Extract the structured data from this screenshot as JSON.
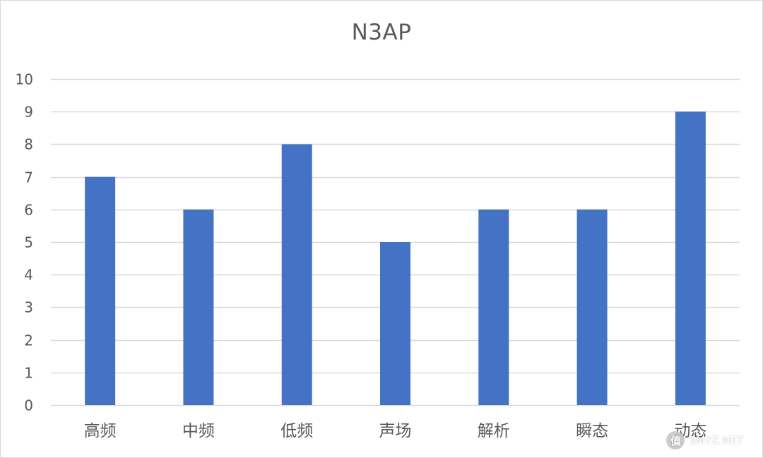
{
  "chart_data": {
    "type": "bar",
    "title": "N3AP",
    "categories": [
      "高频",
      "中频",
      "低频",
      "声场",
      "解析",
      "瞬态",
      "动态"
    ],
    "values": [
      7,
      6,
      8,
      5,
      6,
      6,
      9
    ],
    "xlabel": "",
    "ylabel": "",
    "ylim": [
      0,
      10
    ],
    "yticks": [
      "0",
      "1",
      "2",
      "3",
      "4",
      "5",
      "6",
      "7",
      "8",
      "9",
      "10"
    ],
    "grid": true,
    "legend": "none"
  },
  "colors": {
    "bar": "#4472c4",
    "grid": "#d9d9d9",
    "text": "#595959"
  },
  "watermark": {
    "text": "SMYZ.NET",
    "icon": "smzdm-logo-icon"
  }
}
